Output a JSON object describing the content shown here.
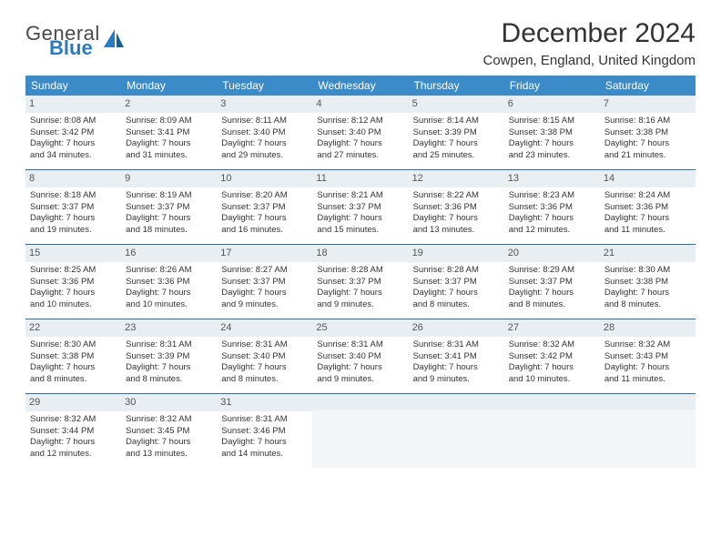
{
  "logo": {
    "line1": "General",
    "line2": "Blue"
  },
  "title": "December 2024",
  "location": "Cowpen, England, United Kingdom",
  "colors": {
    "header_bg": "#3b8bc9",
    "daynum_bg": "#e9eef2",
    "rule": "#2d6fa3",
    "logo_blue": "#2a7bc0"
  },
  "weekdays": [
    "Sunday",
    "Monday",
    "Tuesday",
    "Wednesday",
    "Thursday",
    "Friday",
    "Saturday"
  ],
  "weeks": [
    [
      {
        "n": "1",
        "sr": "Sunrise: 8:08 AM",
        "ss": "Sunset: 3:42 PM",
        "d1": "Daylight: 7 hours",
        "d2": "and 34 minutes."
      },
      {
        "n": "2",
        "sr": "Sunrise: 8:09 AM",
        "ss": "Sunset: 3:41 PM",
        "d1": "Daylight: 7 hours",
        "d2": "and 31 minutes."
      },
      {
        "n": "3",
        "sr": "Sunrise: 8:11 AM",
        "ss": "Sunset: 3:40 PM",
        "d1": "Daylight: 7 hours",
        "d2": "and 29 minutes."
      },
      {
        "n": "4",
        "sr": "Sunrise: 8:12 AM",
        "ss": "Sunset: 3:40 PM",
        "d1": "Daylight: 7 hours",
        "d2": "and 27 minutes."
      },
      {
        "n": "5",
        "sr": "Sunrise: 8:14 AM",
        "ss": "Sunset: 3:39 PM",
        "d1": "Daylight: 7 hours",
        "d2": "and 25 minutes."
      },
      {
        "n": "6",
        "sr": "Sunrise: 8:15 AM",
        "ss": "Sunset: 3:38 PM",
        "d1": "Daylight: 7 hours",
        "d2": "and 23 minutes."
      },
      {
        "n": "7",
        "sr": "Sunrise: 8:16 AM",
        "ss": "Sunset: 3:38 PM",
        "d1": "Daylight: 7 hours",
        "d2": "and 21 minutes."
      }
    ],
    [
      {
        "n": "8",
        "sr": "Sunrise: 8:18 AM",
        "ss": "Sunset: 3:37 PM",
        "d1": "Daylight: 7 hours",
        "d2": "and 19 minutes."
      },
      {
        "n": "9",
        "sr": "Sunrise: 8:19 AM",
        "ss": "Sunset: 3:37 PM",
        "d1": "Daylight: 7 hours",
        "d2": "and 18 minutes."
      },
      {
        "n": "10",
        "sr": "Sunrise: 8:20 AM",
        "ss": "Sunset: 3:37 PM",
        "d1": "Daylight: 7 hours",
        "d2": "and 16 minutes."
      },
      {
        "n": "11",
        "sr": "Sunrise: 8:21 AM",
        "ss": "Sunset: 3:37 PM",
        "d1": "Daylight: 7 hours",
        "d2": "and 15 minutes."
      },
      {
        "n": "12",
        "sr": "Sunrise: 8:22 AM",
        "ss": "Sunset: 3:36 PM",
        "d1": "Daylight: 7 hours",
        "d2": "and 13 minutes."
      },
      {
        "n": "13",
        "sr": "Sunrise: 8:23 AM",
        "ss": "Sunset: 3:36 PM",
        "d1": "Daylight: 7 hours",
        "d2": "and 12 minutes."
      },
      {
        "n": "14",
        "sr": "Sunrise: 8:24 AM",
        "ss": "Sunset: 3:36 PM",
        "d1": "Daylight: 7 hours",
        "d2": "and 11 minutes."
      }
    ],
    [
      {
        "n": "15",
        "sr": "Sunrise: 8:25 AM",
        "ss": "Sunset: 3:36 PM",
        "d1": "Daylight: 7 hours",
        "d2": "and 10 minutes."
      },
      {
        "n": "16",
        "sr": "Sunrise: 8:26 AM",
        "ss": "Sunset: 3:36 PM",
        "d1": "Daylight: 7 hours",
        "d2": "and 10 minutes."
      },
      {
        "n": "17",
        "sr": "Sunrise: 8:27 AM",
        "ss": "Sunset: 3:37 PM",
        "d1": "Daylight: 7 hours",
        "d2": "and 9 minutes."
      },
      {
        "n": "18",
        "sr": "Sunrise: 8:28 AM",
        "ss": "Sunset: 3:37 PM",
        "d1": "Daylight: 7 hours",
        "d2": "and 9 minutes."
      },
      {
        "n": "19",
        "sr": "Sunrise: 8:28 AM",
        "ss": "Sunset: 3:37 PM",
        "d1": "Daylight: 7 hours",
        "d2": "and 8 minutes."
      },
      {
        "n": "20",
        "sr": "Sunrise: 8:29 AM",
        "ss": "Sunset: 3:37 PM",
        "d1": "Daylight: 7 hours",
        "d2": "and 8 minutes."
      },
      {
        "n": "21",
        "sr": "Sunrise: 8:30 AM",
        "ss": "Sunset: 3:38 PM",
        "d1": "Daylight: 7 hours",
        "d2": "and 8 minutes."
      }
    ],
    [
      {
        "n": "22",
        "sr": "Sunrise: 8:30 AM",
        "ss": "Sunset: 3:38 PM",
        "d1": "Daylight: 7 hours",
        "d2": "and 8 minutes."
      },
      {
        "n": "23",
        "sr": "Sunrise: 8:31 AM",
        "ss": "Sunset: 3:39 PM",
        "d1": "Daylight: 7 hours",
        "d2": "and 8 minutes."
      },
      {
        "n": "24",
        "sr": "Sunrise: 8:31 AM",
        "ss": "Sunset: 3:40 PM",
        "d1": "Daylight: 7 hours",
        "d2": "and 8 minutes."
      },
      {
        "n": "25",
        "sr": "Sunrise: 8:31 AM",
        "ss": "Sunset: 3:40 PM",
        "d1": "Daylight: 7 hours",
        "d2": "and 9 minutes."
      },
      {
        "n": "26",
        "sr": "Sunrise: 8:31 AM",
        "ss": "Sunset: 3:41 PM",
        "d1": "Daylight: 7 hours",
        "d2": "and 9 minutes."
      },
      {
        "n": "27",
        "sr": "Sunrise: 8:32 AM",
        "ss": "Sunset: 3:42 PM",
        "d1": "Daylight: 7 hours",
        "d2": "and 10 minutes."
      },
      {
        "n": "28",
        "sr": "Sunrise: 8:32 AM",
        "ss": "Sunset: 3:43 PM",
        "d1": "Daylight: 7 hours",
        "d2": "and 11 minutes."
      }
    ],
    [
      {
        "n": "29",
        "sr": "Sunrise: 8:32 AM",
        "ss": "Sunset: 3:44 PM",
        "d1": "Daylight: 7 hours",
        "d2": "and 12 minutes."
      },
      {
        "n": "30",
        "sr": "Sunrise: 8:32 AM",
        "ss": "Sunset: 3:45 PM",
        "d1": "Daylight: 7 hours",
        "d2": "and 13 minutes."
      },
      {
        "n": "31",
        "sr": "Sunrise: 8:31 AM",
        "ss": "Sunset: 3:46 PM",
        "d1": "Daylight: 7 hours",
        "d2": "and 14 minutes."
      },
      null,
      null,
      null,
      null
    ]
  ]
}
